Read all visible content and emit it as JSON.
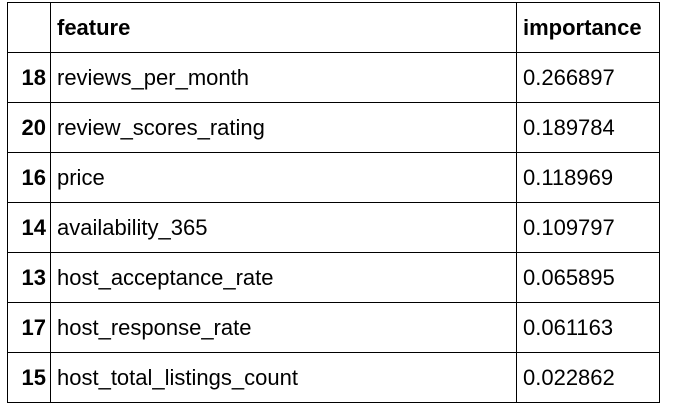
{
  "table": {
    "index_header": "",
    "columns": [
      "feature",
      "importance"
    ],
    "rows": [
      {
        "index": "18",
        "feature": "reviews_per_month",
        "importance": "0.266897"
      },
      {
        "index": "20",
        "feature": "review_scores_rating",
        "importance": "0.189784"
      },
      {
        "index": "16",
        "feature": "price",
        "importance": "0.118969"
      },
      {
        "index": "14",
        "feature": "availability_365",
        "importance": "0.109797"
      },
      {
        "index": "13",
        "feature": "host_acceptance_rate",
        "importance": "0.065895"
      },
      {
        "index": "17",
        "feature": "host_response_rate",
        "importance": "0.061163"
      },
      {
        "index": "15",
        "feature": "host_total_listings_count",
        "importance": "0.022862"
      }
    ]
  }
}
